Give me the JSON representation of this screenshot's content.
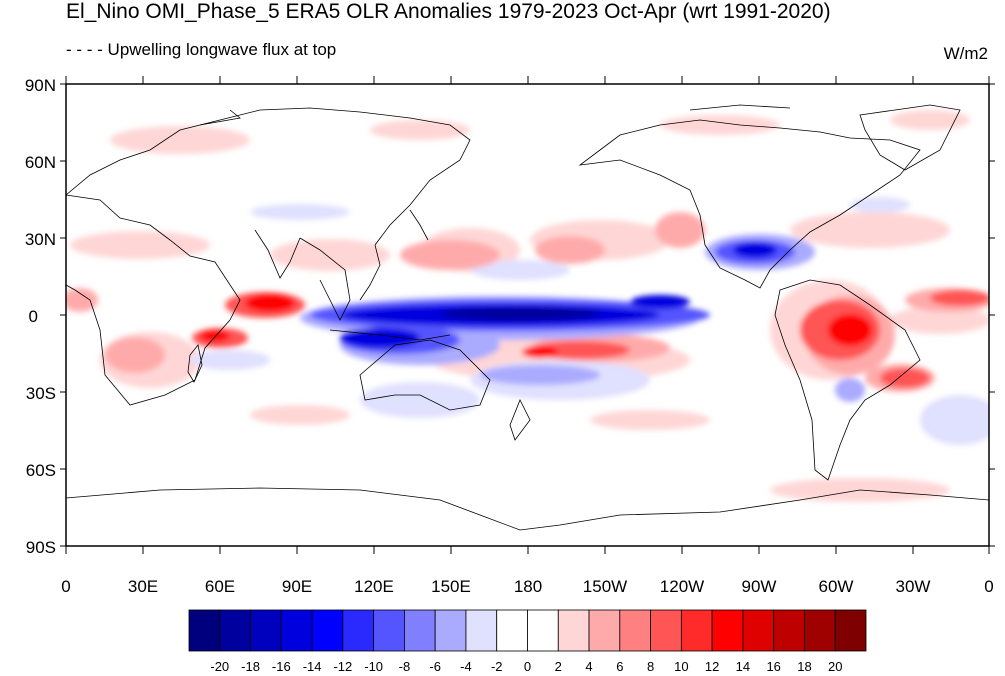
{
  "title": "El_Nino OMI_Phase_5 ERA5 OLR Anomalies 1979-2023 Oct-Apr (wrt 1991-2020)",
  "subtitle": "- - - - Upwelling longwave flux at top",
  "units": "W/m2",
  "lat_labels": [
    "90N",
    "60N",
    "30N",
    "0",
    "30S",
    "60S",
    "90S"
  ],
  "lon_labels": [
    "0",
    "30E",
    "60E",
    "90E",
    "120E",
    "150E",
    "180",
    "150W",
    "120W",
    "90W",
    "60W",
    "30W",
    "0"
  ],
  "colorbar": {
    "labels": [
      "-20",
      "-18",
      "-16",
      "-14",
      "-12",
      "-10",
      "-8",
      "-6",
      "-4",
      "-2",
      "0",
      "2",
      "4",
      "6",
      "8",
      "10",
      "12",
      "14",
      "16",
      "18",
      "20"
    ],
    "colors": [
      "#00007f",
      "#00009f",
      "#0000bf",
      "#0000df",
      "#0000ff",
      "#2a2aff",
      "#5555ff",
      "#8080ff",
      "#aaaaff",
      "#e0e0ff",
      "#ffffff",
      "#ffffff",
      "#ffd6d6",
      "#ffaaaa",
      "#ff8080",
      "#ff5555",
      "#ff2a2a",
      "#ff0000",
      "#df0000",
      "#bf0000",
      "#9f0000",
      "#7f0000"
    ]
  }
}
